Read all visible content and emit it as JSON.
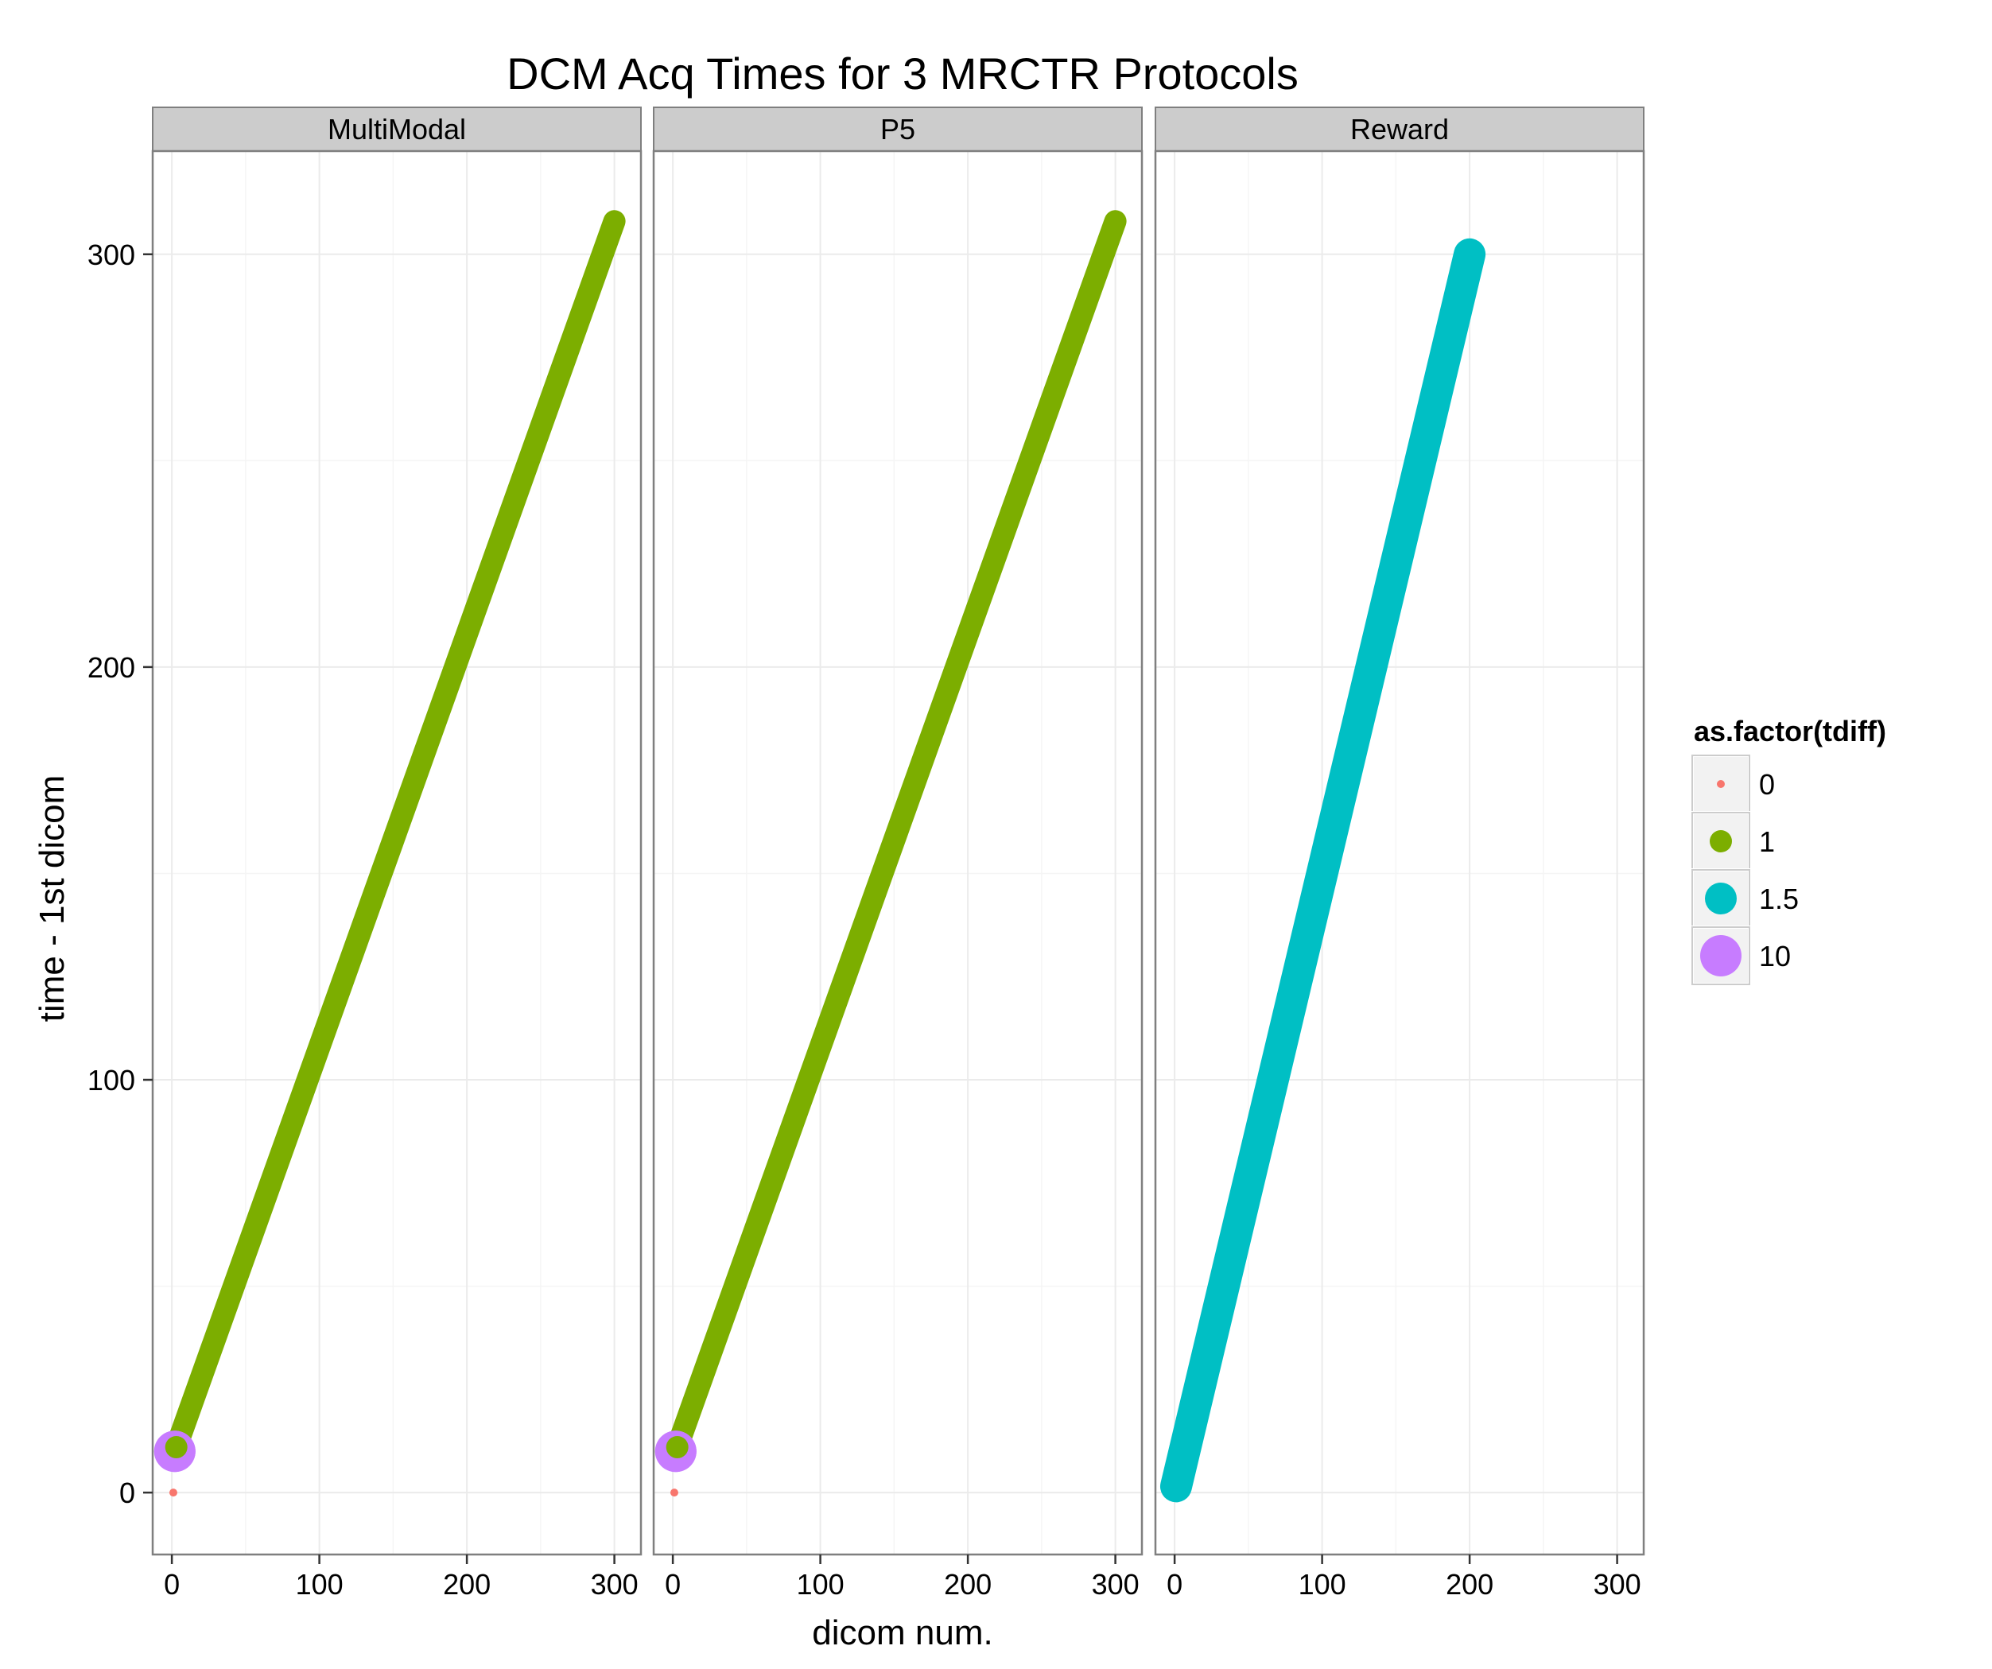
{
  "chart_data": {
    "type": "scatter",
    "title": "DCM Acq Times for 3 MRCTR Protocols",
    "xlabel": "dicom num.",
    "ylabel": "time - 1st dicom",
    "xlim": [
      -13,
      318
    ],
    "ylim": [
      -15,
      325
    ],
    "xticks": [
      0,
      100,
      200,
      300
    ],
    "yticks": [
      0,
      100,
      200,
      300
    ],
    "x_tick_labels": [
      "0",
      "100",
      "200",
      "300"
    ],
    "y_tick_labels": [
      "0",
      "100",
      "200",
      "300"
    ],
    "grid": true,
    "legend": {
      "title": "as.factor(tdiff)",
      "placement": "right",
      "entries": [
        {
          "label": "0",
          "color": "#F8766D"
        },
        {
          "label": "1",
          "color": "#7CAE00"
        },
        {
          "label": "1.5",
          "color": "#00BFC4"
        },
        {
          "label": "10",
          "color": "#C77CFF"
        }
      ]
    },
    "facets": [
      {
        "label": "MultiModal",
        "segments": [
          {
            "tdiff": "0",
            "x": [
              1,
              1
            ],
            "y": [
              0,
              0
            ]
          },
          {
            "tdiff": "10",
            "x": [
              2,
              2
            ],
            "y": [
              10,
              10
            ]
          },
          {
            "tdiff": "1",
            "x": [
              3,
              300
            ],
            "y": [
              11,
              308
            ]
          }
        ]
      },
      {
        "label": "P5",
        "segments": [
          {
            "tdiff": "0",
            "x": [
              1,
              1
            ],
            "y": [
              0,
              0
            ]
          },
          {
            "tdiff": "10",
            "x": [
              2,
              2
            ],
            "y": [
              10,
              10
            ]
          },
          {
            "tdiff": "1",
            "x": [
              3,
              300
            ],
            "y": [
              11,
              308
            ]
          }
        ]
      },
      {
        "label": "Reward",
        "segments": [
          {
            "tdiff": "1.5",
            "x": [
              1,
              200
            ],
            "y": [
              1.5,
              300
            ]
          }
        ]
      }
    ]
  }
}
